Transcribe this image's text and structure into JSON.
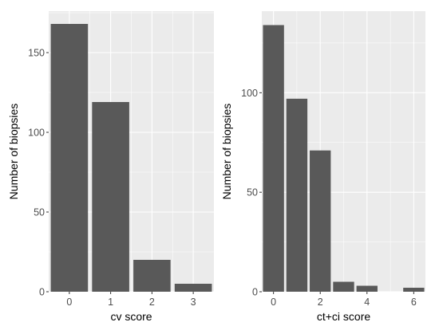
{
  "chart_data": [
    {
      "type": "bar",
      "categories": [
        "0",
        "1",
        "2",
        "3"
      ],
      "x": [
        0,
        1,
        2,
        3
      ],
      "values": [
        168,
        119,
        20,
        5
      ],
      "xlabel": "cv score",
      "ylabel": "Number of biopsies",
      "xlim": [
        -0.5,
        3.5
      ],
      "ylim": [
        0,
        176
      ],
      "xticks": [
        0,
        1,
        2,
        3
      ],
      "yticks": [
        0,
        50,
        100,
        150
      ],
      "grid": true,
      "bar_color": "#595959",
      "panel_color": "#ebebeb"
    },
    {
      "type": "bar",
      "categories": [
        "0",
        "1",
        "2",
        "3",
        "4",
        "6"
      ],
      "x": [
        0,
        1,
        2,
        3,
        4,
        6
      ],
      "values": [
        134,
        97,
        71,
        5,
        3,
        2
      ],
      "xlabel": "ct+ci score",
      "ylabel": "Number of biopsies",
      "xlim": [
        -0.5,
        6.5
      ],
      "ylim": [
        0,
        141
      ],
      "xticks": [
        0,
        2,
        4,
        6
      ],
      "yticks": [
        0,
        50,
        100
      ],
      "grid": true,
      "bar_color": "#595959",
      "panel_color": "#ebebeb"
    }
  ]
}
